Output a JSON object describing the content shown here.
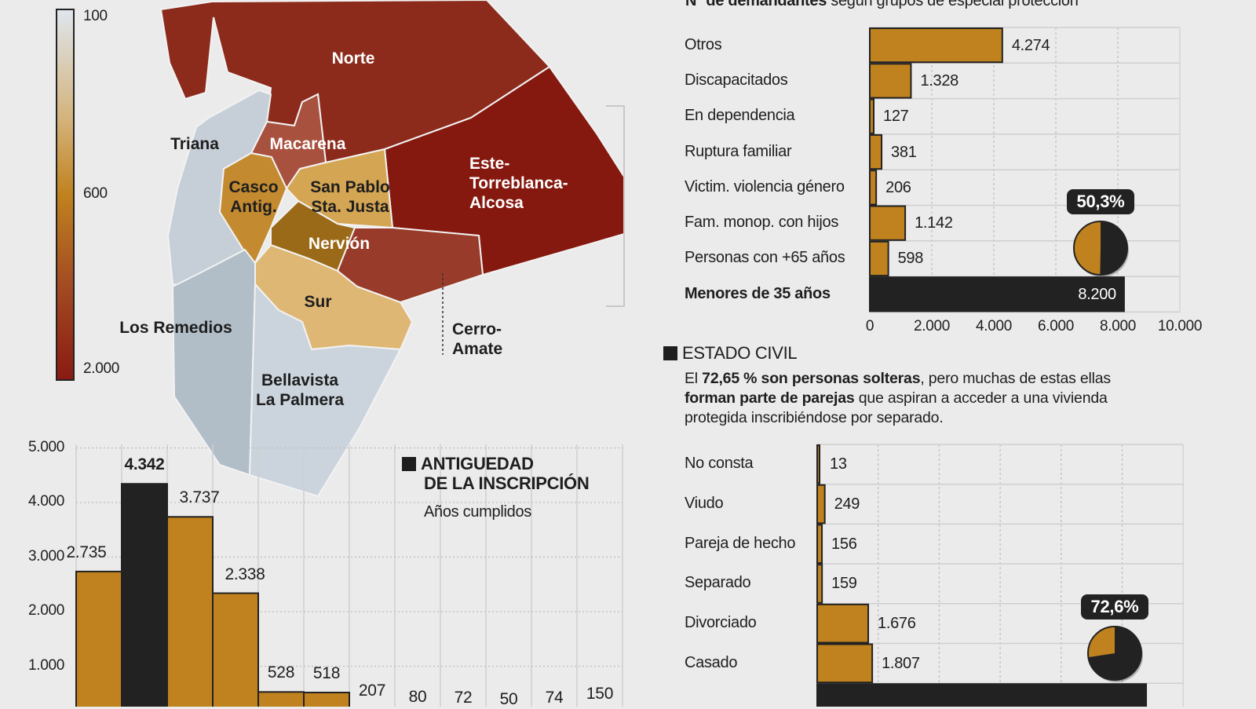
{
  "colors": {
    "gold": "#c0821e",
    "black": "#222222",
    "grid": "#cfcfcf"
  },
  "map": {
    "legend": {
      "ticks": [
        "100",
        "600",
        "2.000"
      ]
    },
    "districts": [
      {
        "id": "norte",
        "name": "Norte",
        "color": "#8c2b1c"
      },
      {
        "id": "triana",
        "name": "Triana",
        "color": "#c6cfd7"
      },
      {
        "id": "macarena",
        "name": "Macarena",
        "color": "#a8513f"
      },
      {
        "id": "este",
        "name": "Este-Torreblanca-Alcosa",
        "lines": [
          "Este-",
          "Torreblanca-",
          "Alcosa"
        ],
        "color": "#85190f"
      },
      {
        "id": "casco",
        "name": "Casco Antig.",
        "lines": [
          "Casco",
          "Antig."
        ],
        "color": "#c38a30"
      },
      {
        "id": "sanpablo",
        "name": "San Pablo Sta. Justa",
        "lines": [
          "San Pablo",
          "Sta. Justa"
        ],
        "color": "#d4a552"
      },
      {
        "id": "nervion",
        "name": "Nervión",
        "color": "#9b6a18"
      },
      {
        "id": "cerro",
        "name": "Cerro-Amate",
        "lines": [
          "Cerro-",
          "Amate"
        ],
        "color": "#983b2a"
      },
      {
        "id": "sur",
        "name": "Sur",
        "color": "#dfb774"
      },
      {
        "id": "remedios",
        "name": "Los Remedios",
        "color": "#b1bdc7"
      },
      {
        "id": "bellavista",
        "name": "Bellavista La Palmera",
        "lines": [
          "Bellavista",
          "La Palmera"
        ],
        "color": "#cbd4dd"
      }
    ]
  },
  "chart_data": [
    {
      "type": "bar",
      "orientation": "vertical",
      "title": "ANTIGUEDAD DE LA INSCRIPCIÓN",
      "title_lines": [
        "ANTIGUEDAD",
        "DE LA INSCRIPCIÓN"
      ],
      "subtitle": "Años cumplidos",
      "values": [
        2735,
        4342,
        3737,
        2338,
        528,
        518,
        207,
        80,
        72,
        50,
        74,
        150
      ],
      "value_labels": [
        "2.735",
        "4.342",
        "3.737",
        "2.338",
        "528",
        "518",
        "207",
        "80",
        "72",
        "50",
        "74",
        "150"
      ],
      "highlight_index": 1,
      "yticks": [
        "1.000",
        "2.000",
        "3.000",
        "4.000",
        "5.000"
      ],
      "ylim": [
        0,
        5000
      ],
      "grid": true
    },
    {
      "type": "bar",
      "orientation": "horizontal",
      "title": "Nº de demandantes",
      "subtitle": "según grupos de especial protección",
      "categories": [
        "Otros",
        "Discapacitados",
        "En dependencia",
        "Ruptura familiar",
        "Victim. violencia género",
        "Fam. monop. con hijos",
        "Personas con +65 años",
        "Menores de 35 años"
      ],
      "values": [
        4274,
        1328,
        127,
        381,
        206,
        1142,
        598,
        8200
      ],
      "value_labels": [
        "4.274",
        "1.328",
        "127",
        "381",
        "206",
        "1.142",
        "598",
        "8.200"
      ],
      "highlight_index": 7,
      "xticks": [
        "0",
        "2.000",
        "4.000",
        "6.000",
        "8.000",
        "10.000"
      ],
      "xlim": [
        0,
        10000
      ],
      "grid": true,
      "pie": {
        "label": "50,3%",
        "value": 50.3
      }
    },
    {
      "type": "bar",
      "orientation": "horizontal",
      "title": "ESTADO CIVIL",
      "text_parts": [
        {
          "t": "El ",
          "b": false
        },
        {
          "t": "72,65 % son personas solteras",
          "b": true
        },
        {
          "t": ", pero muchas de estas ellas ",
          "b": false
        },
        {
          "t": "forman parte de parejas",
          "b": true
        },
        {
          "t": " que aspiran a acceder a una vivienda protegida inscribiéndose por separado.",
          "b": false
        }
      ],
      "categories": [
        "No consta",
        "Viudo",
        "Pareja de hecho",
        "Separado",
        "Divorciado",
        "Casado",
        ""
      ],
      "values": [
        13,
        249,
        156,
        159,
        1676,
        1807,
        10800
      ],
      "value_labels": [
        "13",
        "249",
        "156",
        "159",
        "1.676",
        "1.807",
        ""
      ],
      "highlight_index": 6,
      "xlim": [
        0,
        12000
      ],
      "grid": true,
      "pie": {
        "label": "72,6%",
        "value": 72.6
      }
    }
  ]
}
